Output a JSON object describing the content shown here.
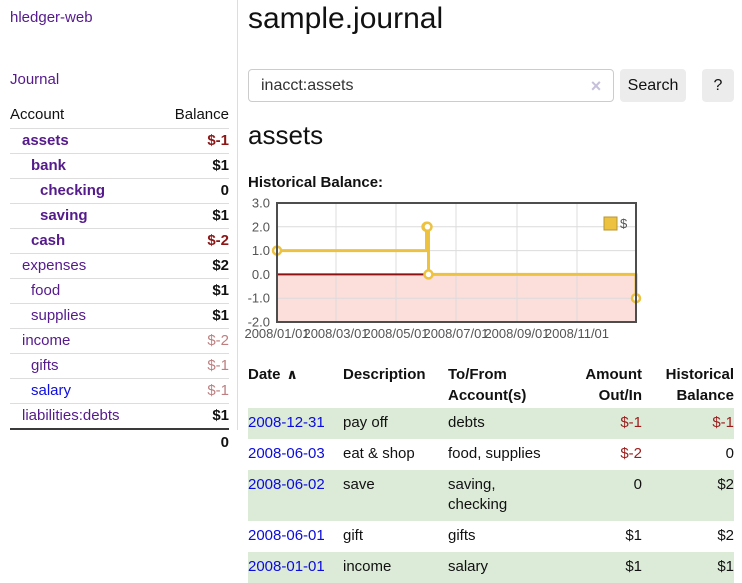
{
  "app": {
    "brand": "hledger-web",
    "nav_journal": "Journal"
  },
  "sidebar": {
    "header": {
      "account": "Account",
      "balance": "Balance"
    },
    "accounts": [
      {
        "name": "assets",
        "indent": 1,
        "balance": "$-1",
        "bold": true,
        "negative": "strong",
        "link_color": "purple"
      },
      {
        "name": "bank",
        "indent": 2,
        "balance": "$1",
        "bold": true,
        "negative": "none",
        "link_color": "purple"
      },
      {
        "name": "checking",
        "indent": 3,
        "balance": "0",
        "bold": true,
        "negative": "none",
        "link_color": "purple"
      },
      {
        "name": "saving",
        "indent": 3,
        "balance": "$1",
        "bold": true,
        "negative": "none",
        "link_color": "purple"
      },
      {
        "name": "cash",
        "indent": 2,
        "balance": "$-2",
        "bold": true,
        "negative": "strong",
        "link_color": "purple"
      },
      {
        "name": "expenses",
        "indent": 1,
        "balance": "$2",
        "bold": false,
        "negative": "none",
        "link_color": "purple"
      },
      {
        "name": "food",
        "indent": 2,
        "balance": "$1",
        "bold": false,
        "negative": "none",
        "link_color": "purple"
      },
      {
        "name": "supplies",
        "indent": 2,
        "balance": "$1",
        "bold": false,
        "negative": "none",
        "link_color": "purple"
      },
      {
        "name": "income",
        "indent": 1,
        "balance": "$-2",
        "bold": false,
        "negative": "soft",
        "link_color": "purple"
      },
      {
        "name": "gifts",
        "indent": 2,
        "balance": "$-1",
        "bold": false,
        "negative": "soft",
        "link_color": "purple"
      },
      {
        "name": "salary",
        "indent": 2,
        "balance": "$-1",
        "bold": false,
        "negative": "soft",
        "link_color": "blue"
      },
      {
        "name": "liabilities:debts",
        "indent": 1,
        "balance": "$1",
        "bold": false,
        "negative": "none",
        "link_color": "purple"
      }
    ],
    "total": "0"
  },
  "header": {
    "title": "sample.journal"
  },
  "search": {
    "query": "inacct:assets",
    "clear_icon": "×",
    "button_label": "Search",
    "help_label": "?"
  },
  "account_page": {
    "heading": "assets",
    "chart_label": "Historical Balance:"
  },
  "chart_data": {
    "type": "line",
    "mode": "steps",
    "title": "Historical Balance",
    "series": [
      {
        "name": "$",
        "color": "#edc240",
        "points": [
          {
            "date": "2008-01-01",
            "value": 1
          },
          {
            "date": "2008-06-01",
            "value": 2
          },
          {
            "date": "2008-06-02",
            "value": 2
          },
          {
            "date": "2008-06-03",
            "value": 0
          },
          {
            "date": "2008-12-31",
            "value": -1
          }
        ]
      }
    ],
    "x_range": [
      "2008-01-01",
      "2008-12-31"
    ],
    "x_ticks": [
      {
        "date": "2008-01-01",
        "label": "2008/01/01"
      },
      {
        "date": "2008-03-01",
        "label": "2008/03/01"
      },
      {
        "date": "2008-05-01",
        "label": "2008/05/01"
      },
      {
        "date": "2008-07-01",
        "label": "2008/07/01"
      },
      {
        "date": "2008-09-01",
        "label": "2008/09/01"
      },
      {
        "date": "2008-11-01",
        "label": "2008/11/01"
      }
    ],
    "ylim": [
      -2,
      3
    ],
    "y_ticks": [
      {
        "value": 3,
        "label": "3.0"
      },
      {
        "value": 2,
        "label": "2.0"
      },
      {
        "value": 1,
        "label": "1.0"
      },
      {
        "value": 0,
        "label": "0.0"
      },
      {
        "value": -1,
        "label": "-1.0"
      },
      {
        "value": -2,
        "label": "-2.0"
      }
    ],
    "legend": {
      "label": "$",
      "position": "top-right"
    },
    "grid": true,
    "colors": {
      "line": "#edc240",
      "point_fill": "#ffffff",
      "border": "#4d4d4d",
      "gridline": "#dcdcdc",
      "negative_region": "#fcdedb",
      "zero_line": "#8e1212",
      "tick_text": "#545454"
    }
  },
  "table": {
    "headers": {
      "date": "Date",
      "sort_icon": "∧",
      "description": "Description",
      "account_line1": "To/From",
      "account_line2": "Account(s)",
      "amount_line1": "Amount",
      "amount_line2": "Out/In",
      "balance_line1": "Historical",
      "balance_line2": "Balance"
    },
    "rows": [
      {
        "date": "2008-12-31",
        "description": "pay off",
        "accounts": [
          "debts"
        ],
        "amount": "$-1",
        "amount_negative": true,
        "balance": "$-1",
        "balance_negative": true,
        "shaded": true
      },
      {
        "date": "2008-06-03",
        "description": "eat & shop",
        "accounts": [
          "food, supplies"
        ],
        "amount": "$-2",
        "amount_negative": true,
        "balance": "0",
        "balance_negative": false,
        "shaded": false
      },
      {
        "date": "2008-06-02",
        "description": "save",
        "accounts": [
          "saving,",
          "checking"
        ],
        "amount": "0",
        "amount_negative": false,
        "balance": "$2",
        "balance_negative": false,
        "shaded": true
      },
      {
        "date": "2008-06-01",
        "description": "gift",
        "accounts": [
          "gifts"
        ],
        "amount": "$1",
        "amount_negative": false,
        "balance": "$2",
        "balance_negative": false,
        "shaded": false
      },
      {
        "date": "2008-01-01",
        "description": "income",
        "accounts": [
          "salary"
        ],
        "amount": "$1",
        "amount_negative": false,
        "balance": "$1",
        "balance_negative": false,
        "shaded": true
      }
    ]
  }
}
